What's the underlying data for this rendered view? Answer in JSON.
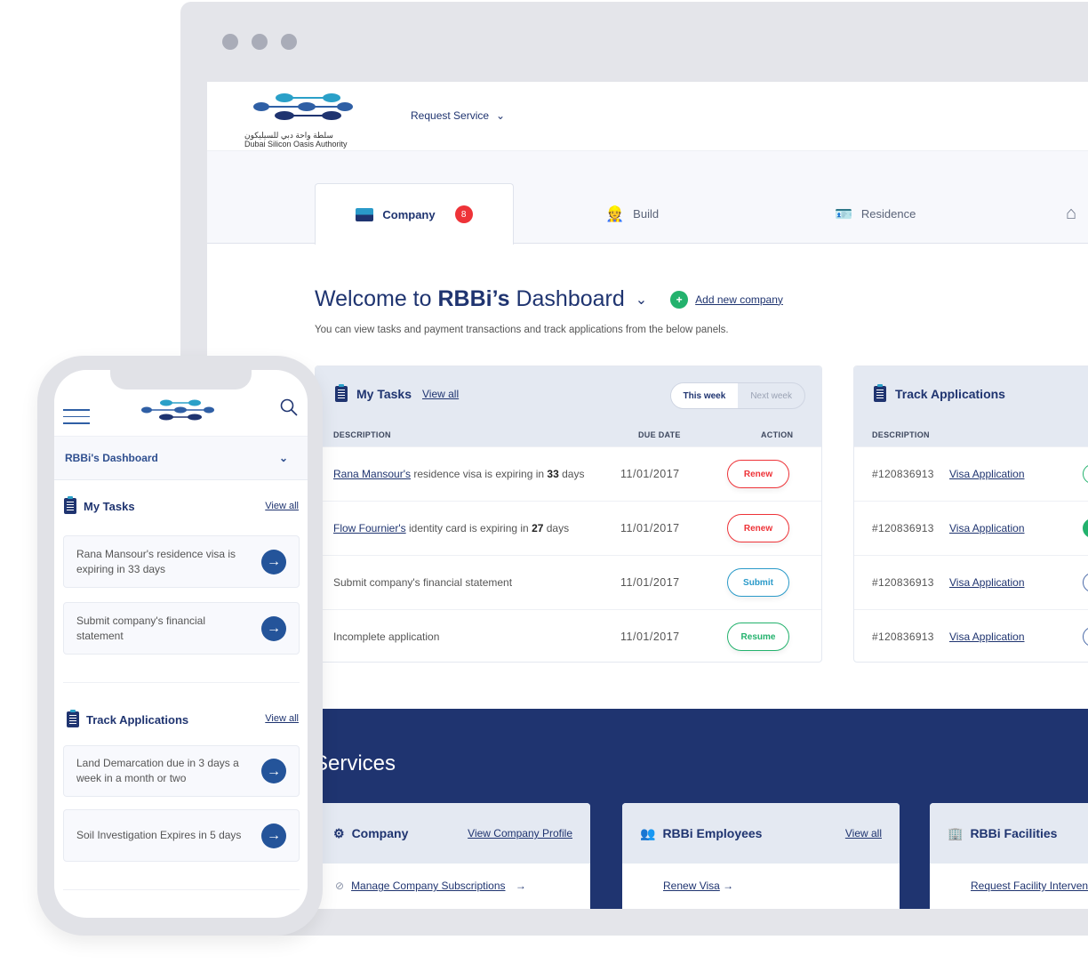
{
  "colors": {
    "navy": "#1f3470",
    "red": "#ee3338",
    "blue": "#2a9ac9",
    "green": "#23b26d",
    "panel": "#e4e9f2"
  },
  "header": {
    "logo_text_ar": "سلطة واحة دبي للسيليكون",
    "logo_text_en": "Dubai Silicon Oasis Authority",
    "request_service": "Request Service"
  },
  "tabs": [
    {
      "label": "Company",
      "badge": "8",
      "icon": "briefcase-icon"
    },
    {
      "label": "Build",
      "icon": "worker-icon"
    },
    {
      "label": "Residence",
      "icon": "passport-icon"
    },
    {
      "icon": "home-icon"
    }
  ],
  "welcome": {
    "prefix": "Welcome to ",
    "name": "RBBi’s",
    "suffix": " Dashboard",
    "add_company": "Add new company",
    "subtitle": "You can view tasks and payment transactions and track applications from the below panels."
  },
  "tasks": {
    "title": "My Tasks",
    "view_all": "View all",
    "this_week": "This week",
    "next_week": "Next week",
    "columns": [
      "DESCRIPTION",
      "DUE DATE",
      "ACTION"
    ],
    "rows": [
      {
        "link": "Rana Mansour's",
        "text": " residence visa is expiring in ",
        "num": "33",
        "tail": " days",
        "date": "11/01/2017",
        "action": "Renew",
        "color": "#ee3338"
      },
      {
        "link": "Flow Fournier's",
        "text": " identity card is expiring in ",
        "num": "27",
        "tail": " days",
        "date": "11/01/2017",
        "action": "Renew",
        "color": "#ee3338"
      },
      {
        "link": "",
        "text": "Submit company's financial statement",
        "num": "",
        "tail": "",
        "date": "11/01/2017",
        "action": "Submit",
        "color": "#2a9ac9"
      },
      {
        "link": "",
        "text": "Incomplete application",
        "num": "",
        "tail": "",
        "date": "11/01/2017",
        "action": "Resume",
        "color": "#23b26d"
      }
    ]
  },
  "track": {
    "title": "Track Applications",
    "column": "DESCRIPTION",
    "rows": [
      {
        "id": "#120836913",
        "link": "Visa Application"
      },
      {
        "id": "#120836913",
        "link": "Visa Application"
      },
      {
        "id": "#120836913",
        "link": "Visa Application"
      },
      {
        "id": "#120836913",
        "link": "Visa Application"
      }
    ]
  },
  "services": {
    "title": "Services",
    "cards": [
      {
        "title": "Company",
        "link": "View Company Profile",
        "item": "Manage Company Subscriptions"
      },
      {
        "title": "RBBi Employees",
        "link": "View all",
        "item": "Renew Visa"
      },
      {
        "title": "RBBi Facilities",
        "link": "",
        "item": "Request Facility Intervention"
      }
    ]
  },
  "mobile": {
    "dashboard": "RBBi's Dashboard",
    "tasks_title": "My Tasks",
    "tasks_view_all": "View all",
    "tasks": [
      "Rana Mansour's residence visa is expiring in 33 days",
      "Submit company's financial statement"
    ],
    "track_title": "Track Applications",
    "track_view_all": "View all",
    "track": [
      "Land Demarcation due in 3 days a week in a month or two",
      "Soil Investigation Expires in 5 days"
    ]
  }
}
